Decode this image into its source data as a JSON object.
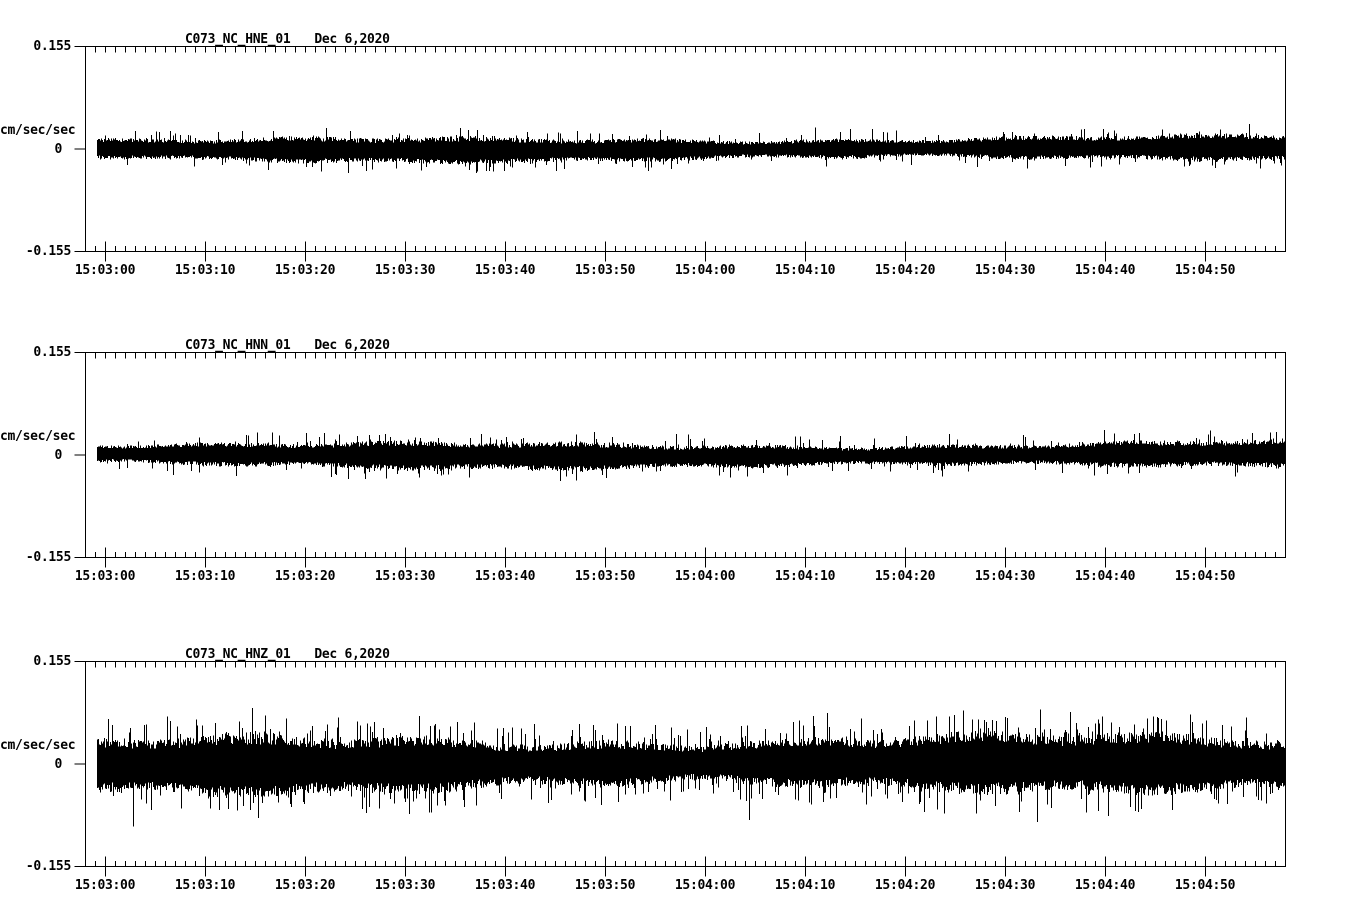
{
  "figure": {
    "kind": "three-component seismogram display",
    "background_color": "#ffffff",
    "trace_color": "#000000",
    "axis_color": "#000000",
    "text_color": "#000000"
  },
  "axis": {
    "ymax_label": "0.155",
    "zero_label": "0",
    "ymin_label": "-0.155",
    "y_unit_label": "cm/sec/sec"
  },
  "time_axis": {
    "tick_labels": [
      "15:03:00",
      "15:03:10",
      "15:03:20",
      "15:03:30",
      "15:03:40",
      "15:03:50",
      "15:04:00",
      "15:04:10",
      "15:04:20",
      "15:04:30",
      "15:04:40",
      "15:04:50"
    ],
    "minor_tick_interval_seconds": 1,
    "major_tick_interval_seconds": 10,
    "visible_span_seconds": 120
  },
  "chart_data": [
    {
      "type": "line",
      "title": "C073_NC_HNE_01",
      "date_label": "Dec 6,2020",
      "ylabel": "cm/sec/sec",
      "ylim": [
        -0.155,
        0.155
      ],
      "yticks": [
        -0.155,
        0,
        0.155
      ],
      "x_tick_labels_shared": true,
      "series_description": "continuous ambient-noise acceleration trace, zero-mean",
      "noise_profile": {
        "core_amplitude": 0.014,
        "typical_peak": 0.03,
        "max_peak": 0.047,
        "spike_probability": 0.1,
        "seed": 20201206
      }
    },
    {
      "type": "line",
      "title": "C073_NC_HNN_01",
      "date_label": "Dec 6,2020",
      "ylabel": "cm/sec/sec",
      "ylim": [
        -0.155,
        0.155
      ],
      "yticks": [
        -0.155,
        0,
        0.155
      ],
      "x_tick_labels_shared": true,
      "series_description": "continuous ambient-noise acceleration trace, zero-mean",
      "noise_profile": {
        "core_amplitude": 0.015,
        "typical_peak": 0.034,
        "max_peak": 0.053,
        "spike_probability": 0.11,
        "seed": 31415926
      }
    },
    {
      "type": "line",
      "title": "C073_NC_HNZ_01",
      "date_label": "Dec 6,2020",
      "ylabel": "cm/sec/sec",
      "ylim": [
        -0.155,
        0.155
      ],
      "yticks": [
        -0.155,
        0,
        0.155
      ],
      "x_tick_labels_shared": true,
      "series_description": "continuous ambient-noise acceleration trace, zero-mean, larger amplitude than horizontals",
      "noise_profile": {
        "core_amplitude": 0.032,
        "typical_peak": 0.068,
        "max_peak": 0.113,
        "spike_probability": 0.2,
        "seed": 27182818
      }
    }
  ]
}
